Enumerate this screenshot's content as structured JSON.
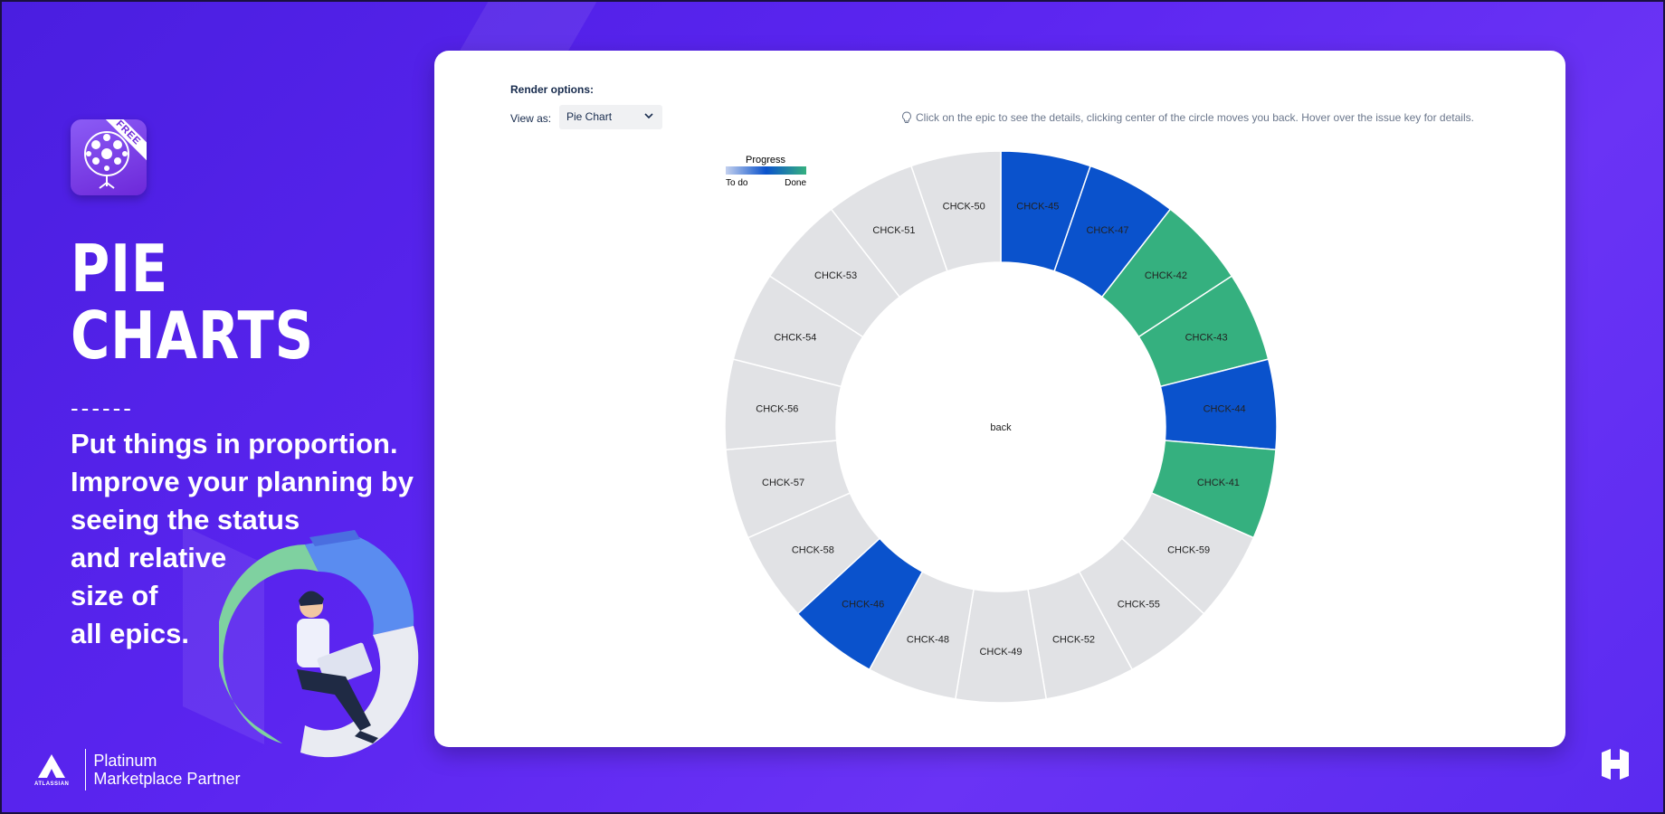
{
  "promo": {
    "badge": "FREE",
    "headline_line1": "PIE",
    "headline_line2": "CHARTS",
    "divider": "------",
    "tagline": [
      "Put things in proportion.",
      "Improve your planning by",
      "seeing the status",
      "and relative",
      "size of",
      "all epics."
    ],
    "partner_brand": "ATLASSIAN",
    "partner_line1": "Platinum",
    "partner_line2": "Marketplace Partner"
  },
  "panel": {
    "render_options_label": "Render options:",
    "view_as_label": "View as:",
    "view_as_value": "Pie Chart",
    "hint": "Click on the epic to see the details, clicking center of the circle moves you back. Hover over the issue key for details."
  },
  "colors": {
    "todo": "#e1e2e5",
    "in_progress": "#0a52cc",
    "done": "#35b07f"
  },
  "chart_data": {
    "type": "pie",
    "variant": "donut",
    "title": "",
    "center_label": "back",
    "legend": {
      "title": "Progress",
      "min_label": "To do",
      "max_label": "Done",
      "placement": "top-left"
    },
    "slices": [
      {
        "key": "CHCK-45",
        "value": 1,
        "status": "in_progress"
      },
      {
        "key": "CHCK-47",
        "value": 1,
        "status": "in_progress"
      },
      {
        "key": "CHCK-42",
        "value": 1,
        "status": "done"
      },
      {
        "key": "CHCK-43",
        "value": 1,
        "status": "done"
      },
      {
        "key": "CHCK-44",
        "value": 1,
        "status": "in_progress"
      },
      {
        "key": "CHCK-41",
        "value": 1,
        "status": "done"
      },
      {
        "key": "CHCK-59",
        "value": 1,
        "status": "todo"
      },
      {
        "key": "CHCK-55",
        "value": 1,
        "status": "todo"
      },
      {
        "key": "CHCK-52",
        "value": 1,
        "status": "todo"
      },
      {
        "key": "CHCK-49",
        "value": 1,
        "status": "todo"
      },
      {
        "key": "CHCK-48",
        "value": 1,
        "status": "todo"
      },
      {
        "key": "CHCK-46",
        "value": 1,
        "status": "in_progress"
      },
      {
        "key": "CHCK-58",
        "value": 1,
        "status": "todo"
      },
      {
        "key": "CHCK-57",
        "value": 1,
        "status": "todo"
      },
      {
        "key": "CHCK-56",
        "value": 1,
        "status": "todo"
      },
      {
        "key": "CHCK-54",
        "value": 1,
        "status": "todo"
      },
      {
        "key": "CHCK-53",
        "value": 1,
        "status": "todo"
      },
      {
        "key": "CHCK-51",
        "value": 1,
        "status": "todo"
      },
      {
        "key": "CHCK-50",
        "value": 1,
        "status": "todo"
      }
    ]
  }
}
